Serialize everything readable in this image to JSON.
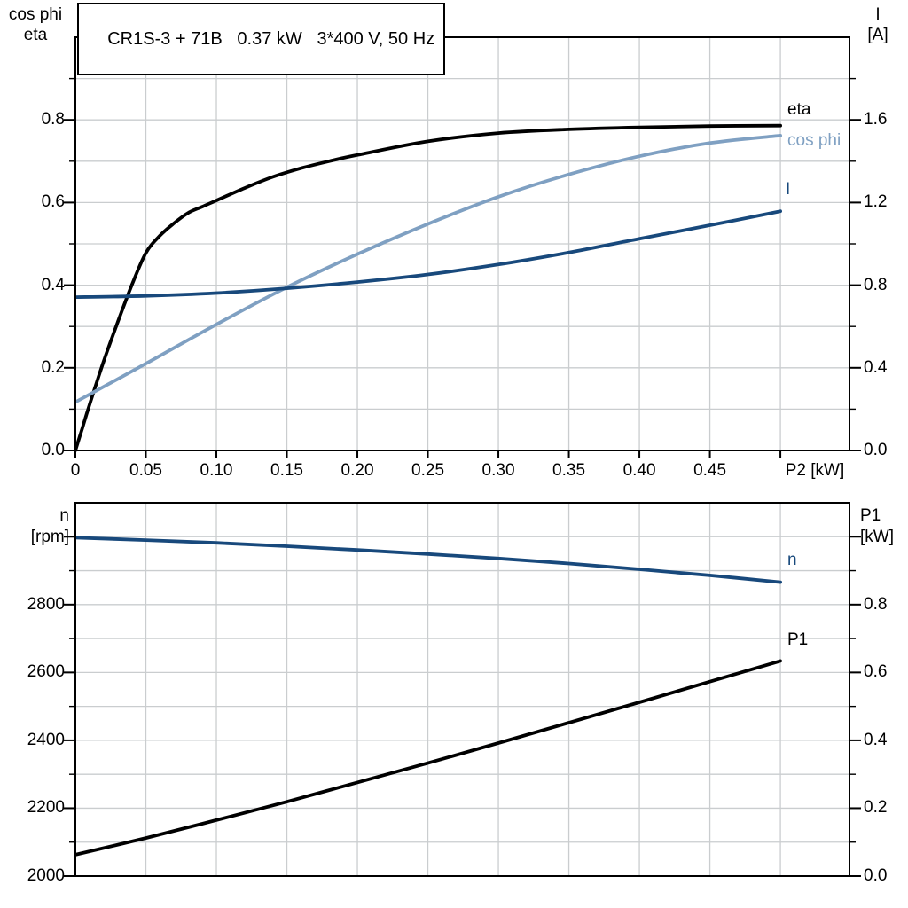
{
  "header": {
    "title": "CR1S-3 + 71B   0.37 kW   3*400 V, 50 Hz"
  },
  "colors": {
    "black": "#000000",
    "navy": "#18497C",
    "lightblue": "#7FA0C2",
    "grid": "#CACDCF",
    "axis": "#000000"
  },
  "chart_data": [
    {
      "id": "motor-electrical-curves",
      "type": "line",
      "title": "CR1S-3 + 71B   0.37 kW   3*400 V, 50 Hz",
      "x_axis": {
        "label": "P2 [kW]",
        "min": 0,
        "max": 0.549,
        "grid_max": 0.5,
        "tick_step": 0.05,
        "show_ticks": true,
        "tick_labels": [
          "0",
          "0.05",
          "0.10",
          "0.15",
          "0.20",
          "0.25",
          "0.30",
          "0.35",
          "0.40",
          "0.45"
        ]
      },
      "left_axis": {
        "title_lines": [
          "cos phi",
          "eta"
        ],
        "min": 0,
        "max": 1.0,
        "grid_step": 0.1,
        "minor_step": 0.1,
        "label_step": 0.2,
        "tick_labels": [
          "0.0",
          "0.2",
          "0.4",
          "0.6",
          "0.8"
        ]
      },
      "right_axis": {
        "title_lines": [
          "I",
          "[A]"
        ],
        "min": 0,
        "max": 2.0,
        "minor_step": 0.2,
        "label_step": 0.4,
        "tick_labels": [
          "0.0",
          "0.4",
          "0.8",
          "1.2",
          "1.6"
        ]
      },
      "series": [
        {
          "name": "eta",
          "axis": "left",
          "color": "black",
          "x": [
            0,
            0.005,
            0.01,
            0.02,
            0.03,
            0.04,
            0.05,
            0.06,
            0.07,
            0.08,
            0.09,
            0.1,
            0.12,
            0.14,
            0.16,
            0.18,
            0.2,
            0.25,
            0.3,
            0.35,
            0.4,
            0.45,
            0.5
          ],
          "values": [
            0,
            0.055,
            0.11,
            0.215,
            0.31,
            0.4,
            0.478,
            0.52,
            0.55,
            0.575,
            0.59,
            0.605,
            0.635,
            0.662,
            0.683,
            0.7,
            0.715,
            0.748,
            0.768,
            0.777,
            0.782,
            0.785,
            0.786
          ]
        },
        {
          "name": "cos phi",
          "axis": "left",
          "color": "lightblue",
          "x": [
            0,
            0.05,
            0.1,
            0.15,
            0.2,
            0.25,
            0.3,
            0.35,
            0.4,
            0.45,
            0.5
          ],
          "values": [
            0.117,
            0.21,
            0.305,
            0.395,
            0.475,
            0.548,
            0.614,
            0.668,
            0.712,
            0.744,
            0.762
          ]
        },
        {
          "name": "I",
          "axis": "right",
          "color": "navy",
          "x": [
            0,
            0.05,
            0.1,
            0.15,
            0.2,
            0.25,
            0.3,
            0.35,
            0.4,
            0.45,
            0.5
          ],
          "values": [
            0.742,
            0.748,
            0.762,
            0.785,
            0.815,
            0.852,
            0.9,
            0.958,
            1.025,
            1.09,
            1.158
          ]
        }
      ]
    },
    {
      "id": "speed-and-input-power-curves",
      "type": "line",
      "title": "",
      "x_axis": {
        "label": "",
        "min": 0,
        "max": 0.549,
        "grid_max": 0.5,
        "tick_step": 0.05,
        "show_ticks": false,
        "tick_labels": []
      },
      "left_axis": {
        "title_lines": [
          "n",
          "[rpm]"
        ],
        "min": 2000,
        "max": 3100,
        "grid_step": 100,
        "minor_step": 100,
        "label_step": 200,
        "tick_labels": [
          "2000",
          "2200",
          "2400",
          "2600",
          "2800"
        ]
      },
      "right_axis": {
        "title_lines": [
          "P1",
          "[kW]"
        ],
        "min": 0,
        "max": 1.1,
        "minor_step": 0.1,
        "label_step": 0.2,
        "tick_labels": [
          "0.0",
          "0.2",
          "0.4",
          "0.6",
          "0.8"
        ]
      },
      "series": [
        {
          "name": "n",
          "axis": "left",
          "color": "navy",
          "x": [
            0,
            0.05,
            0.1,
            0.15,
            0.2,
            0.25,
            0.3,
            0.35,
            0.4,
            0.45,
            0.5
          ],
          "values": [
            2997,
            2990,
            2982,
            2972,
            2961,
            2949,
            2936,
            2921,
            2904,
            2886,
            2866
          ]
        },
        {
          "name": "P1",
          "axis": "right",
          "color": "black",
          "x": [
            0,
            0.05,
            0.1,
            0.15,
            0.2,
            0.25,
            0.3,
            0.35,
            0.4,
            0.45,
            0.5
          ],
          "values": [
            0.063,
            0.112,
            0.165,
            0.219,
            0.276,
            0.333,
            0.392,
            0.452,
            0.512,
            0.573,
            0.634
          ]
        }
      ]
    }
  ]
}
